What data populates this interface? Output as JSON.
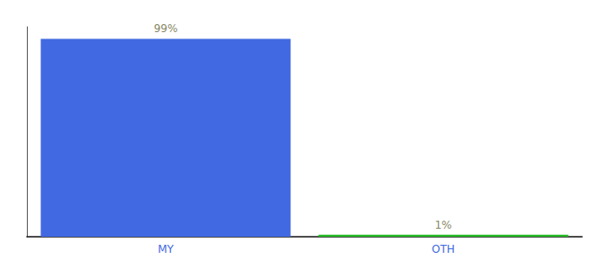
{
  "chart_data": {
    "type": "bar",
    "categories": [
      "MY",
      "OTH"
    ],
    "values": [
      99,
      1
    ],
    "value_labels": [
      "99%",
      "1%"
    ],
    "colors": [
      "#4169e1",
      "#22bb22"
    ],
    "ylim": [
      0,
      105
    ],
    "yticks": [],
    "tick_labels": "x",
    "data_labels": true,
    "grid": false
  }
}
